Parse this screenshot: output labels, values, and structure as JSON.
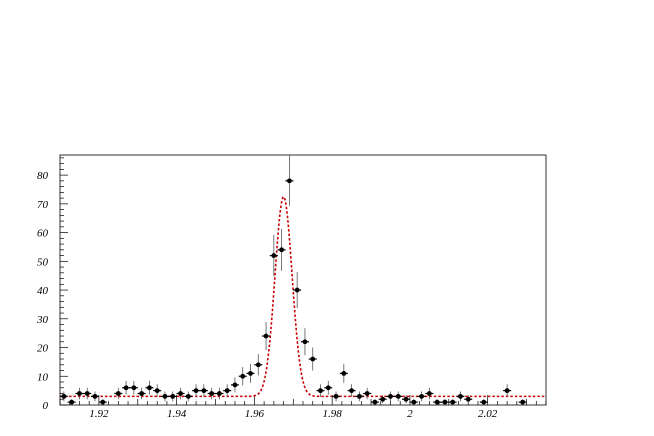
{
  "chart_data": {
    "type": "scatter",
    "title": "",
    "xlabel": "",
    "ylabel": "",
    "xlim": [
      1.91,
      2.035
    ],
    "ylim": [
      0,
      87
    ],
    "x_ticks": [
      1.92,
      1.94,
      1.96,
      1.98,
      2,
      2.02
    ],
    "x_tick_labels": [
      "1.92",
      "1.94",
      "1.96",
      "1.98",
      "2",
      "2.02"
    ],
    "y_ticks": [
      0,
      10,
      20,
      30,
      40,
      50,
      60,
      70,
      80
    ],
    "y_tick_labels": [
      "0",
      "10",
      "20",
      "30",
      "40",
      "50",
      "60",
      "70",
      "80"
    ],
    "grid": false,
    "legend": "none",
    "colors": {
      "points": "#000000",
      "fit": "#cc0000",
      "axes": "#000000"
    },
    "series": [
      {
        "kind": "points-with-errors",
        "x": [
          1.911,
          1.913,
          1.915,
          1.917,
          1.919,
          1.921,
          1.925,
          1.927,
          1.929,
          1.931,
          1.933,
          1.935,
          1.937,
          1.939,
          1.941,
          1.943,
          1.945,
          1.947,
          1.949,
          1.951,
          1.953,
          1.955,
          1.957,
          1.959,
          1.961,
          1.963,
          1.965,
          1.967,
          1.969,
          1.971,
          1.973,
          1.975,
          1.977,
          1.979,
          1.981,
          1.983,
          1.985,
          1.987,
          1.989,
          1.991,
          1.993,
          1.995,
          1.997,
          1.999,
          2.001,
          2.003,
          2.005,
          2.007,
          2.009,
          2.011,
          2.013,
          2.015,
          2.019,
          2.025,
          2.029
        ],
        "y": [
          3,
          1,
          4,
          4,
          3,
          1,
          4,
          6,
          6,
          4,
          6,
          5,
          3,
          3,
          4,
          3,
          5,
          5,
          4,
          4,
          5,
          7,
          10,
          11,
          14,
          24,
          52,
          54,
          78,
          40,
          22,
          16,
          5,
          6,
          3,
          11,
          5,
          3,
          4,
          1,
          2,
          3,
          3,
          2,
          1,
          3,
          4,
          1,
          1,
          1,
          3,
          2,
          1,
          5,
          1
        ],
        "err": [
          1.7,
          1.0,
          2.0,
          2.0,
          1.7,
          1.0,
          2.0,
          2.4,
          2.4,
          2.0,
          2.4,
          2.2,
          1.7,
          1.7,
          2.0,
          1.7,
          2.2,
          2.2,
          2.0,
          2.0,
          2.2,
          2.6,
          3.2,
          3.3,
          3.7,
          4.9,
          7.2,
          7.3,
          8.8,
          6.3,
          4.7,
          4.0,
          2.2,
          2.4,
          1.7,
          3.3,
          2.2,
          1.7,
          2.0,
          1.0,
          1.4,
          1.7,
          1.7,
          1.4,
          1.0,
          1.7,
          2.0,
          1.0,
          1.0,
          1.0,
          1.7,
          1.4,
          1.0,
          2.2,
          1.0
        ]
      },
      {
        "kind": "fit-curve",
        "model": "gaussian-plus-linear",
        "peak_x": 1.9675,
        "peak_height": 69.5,
        "sigma": 0.0022,
        "background_start": 3.0,
        "background_end": 3.0
      }
    ]
  }
}
